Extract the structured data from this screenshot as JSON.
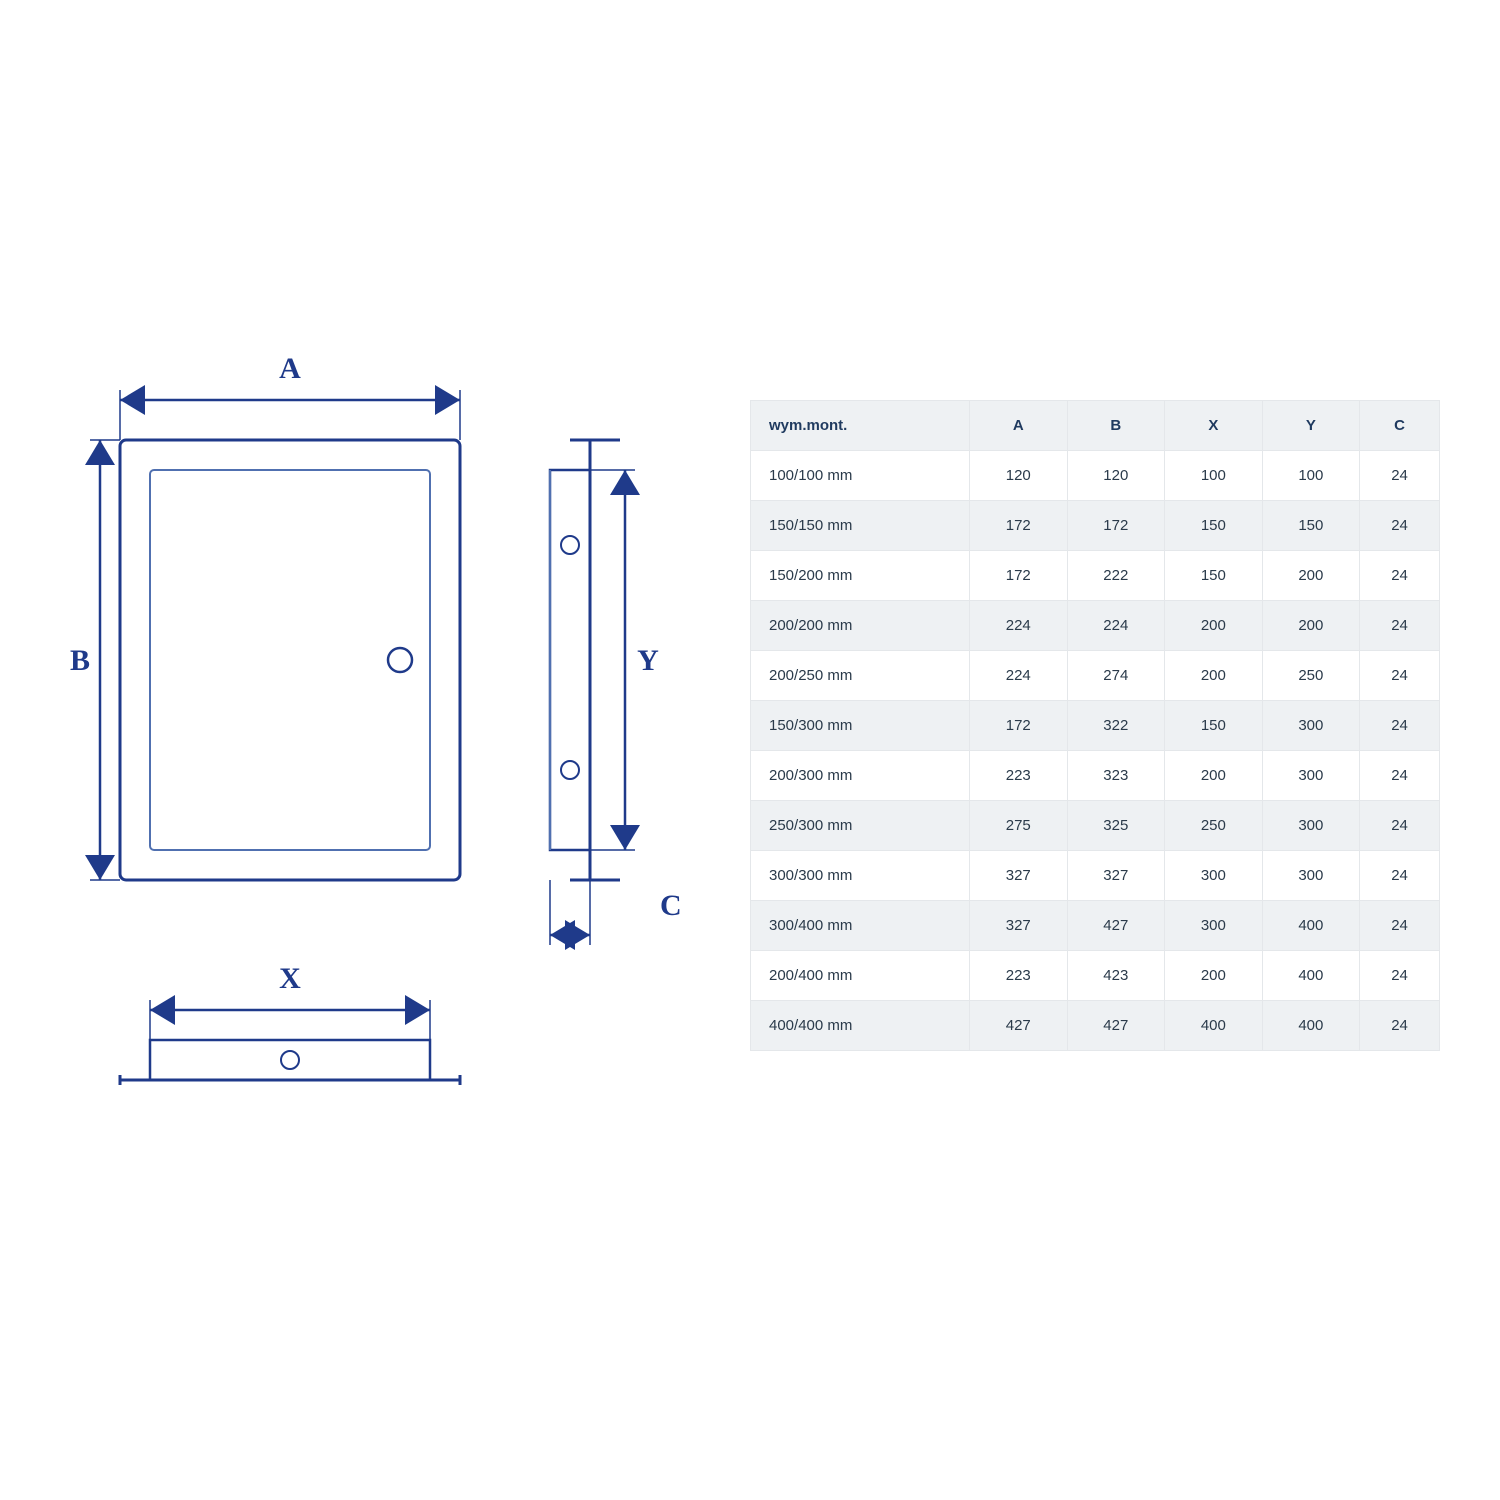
{
  "diagram": {
    "stroke_color": "#1f3a8a",
    "stroke_light": "#5070b0",
    "label_color": "#1f3a8a",
    "label_font_size": 30,
    "labels": {
      "A": "A",
      "B": "B",
      "X": "X",
      "Y": "Y",
      "C": "C"
    }
  },
  "table": {
    "header_bg": "#eef1f3",
    "row_alt_bg": "#eef1f3",
    "row_bg": "#ffffff",
    "border_color": "#e4e7ea",
    "text_color": "#2a3a4a",
    "font_size": 15,
    "columns": [
      "wym.mont.",
      "A",
      "B",
      "X",
      "Y",
      "C"
    ],
    "rows": [
      [
        "100/100 mm",
        "120",
        "120",
        "100",
        "100",
        "24"
      ],
      [
        "150/150 mm",
        "172",
        "172",
        "150",
        "150",
        "24"
      ],
      [
        "150/200 mm",
        "172",
        "222",
        "150",
        "200",
        "24"
      ],
      [
        "200/200 mm",
        "224",
        "224",
        "200",
        "200",
        "24"
      ],
      [
        "200/250 mm",
        "224",
        "274",
        "200",
        "250",
        "24"
      ],
      [
        "150/300 mm",
        "172",
        "322",
        "150",
        "300",
        "24"
      ],
      [
        "200/300 mm",
        "223",
        "323",
        "200",
        "300",
        "24"
      ],
      [
        "250/300 mm",
        "275",
        "325",
        "250",
        "300",
        "24"
      ],
      [
        "300/300 mm",
        "327",
        "327",
        "300",
        "300",
        "24"
      ],
      [
        "300/400 mm",
        "327",
        "427",
        "300",
        "400",
        "24"
      ],
      [
        "200/400 mm",
        "223",
        "423",
        "200",
        "400",
        "24"
      ],
      [
        "400/400 mm",
        "427",
        "427",
        "400",
        "400",
        "24"
      ]
    ]
  }
}
